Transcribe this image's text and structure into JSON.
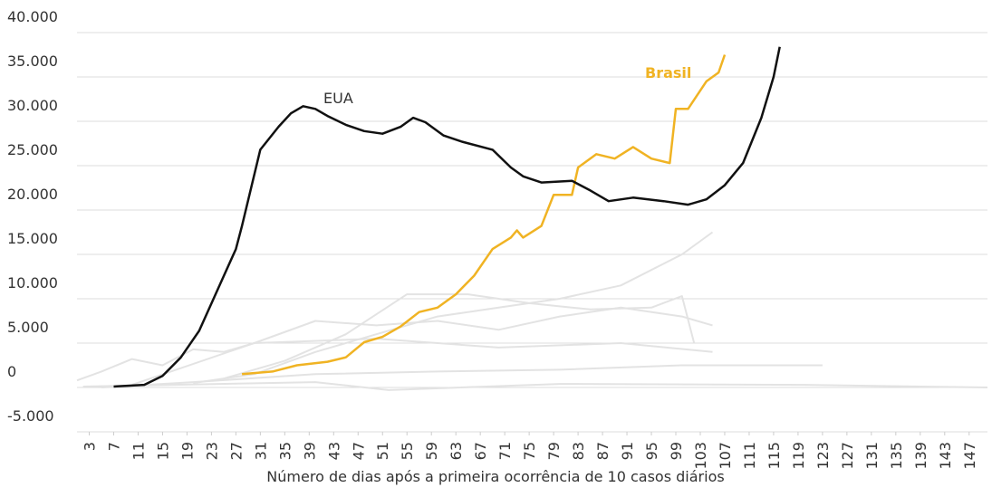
{
  "chart_data": {
    "type": "line",
    "x_label": "Número de dias após a primeira ocorrência de 10 casos diários",
    "xlim": [
      1,
      150
    ],
    "ylim": [
      -5000,
      40000
    ],
    "grid": true,
    "xticks": [
      3,
      7,
      11,
      15,
      19,
      23,
      27,
      31,
      35,
      39,
      43,
      47,
      51,
      55,
      59,
      63,
      67,
      71,
      75,
      79,
      83,
      87,
      91,
      95,
      99,
      103,
      107,
      111,
      115,
      119,
      123,
      127,
      131,
      135,
      139,
      143,
      147
    ],
    "yticks": [
      {
        "value": -5000,
        "label": "-5.000"
      },
      0,
      {
        "value": 5000,
        "label": "5.000"
      },
      {
        "value": 10000,
        "label": "10.000"
      },
      {
        "value": 15000,
        "label": "15.000"
      },
      {
        "value": 20000,
        "label": "20.000"
      },
      {
        "value": 25000,
        "label": "25.000"
      },
      {
        "value": 30000,
        "label": "30.000"
      },
      {
        "value": 35000,
        "label": "35.000"
      },
      {
        "value": 40000,
        "label": "40.000"
      }
    ],
    "series": [
      {
        "color": "#e3e3e3",
        "x": [
          1,
          5,
          10,
          15,
          20,
          25,
          30,
          40,
          50,
          60,
          70,
          80,
          90,
          100,
          105
        ],
        "values": [
          800,
          1800,
          3200,
          2500,
          4300,
          4000,
          5000,
          7500,
          7000,
          7500,
          6500,
          8000,
          9000,
          8000,
          7000
        ]
      },
      {
        "color": "#e3e3e3",
        "x": [
          20,
          30,
          40,
          50,
          60,
          70,
          80,
          90,
          100,
          105
        ],
        "values": [
          500,
          1500,
          4000,
          6000,
          8000,
          9000,
          10000,
          11500,
          15000,
          17500
        ]
      },
      {
        "color": "#e3e3e3",
        "x": [
          25,
          35,
          45,
          55,
          65,
          75,
          85,
          95,
          100,
          102
        ],
        "values": [
          1000,
          3000,
          6000,
          10500,
          10500,
          9500,
          8800,
          9000,
          10300,
          5000
        ]
      },
      {
        "color": "#e3e3e3",
        "x": [
          5,
          20,
          40,
          60,
          80,
          100,
          123
        ],
        "values": [
          0,
          600,
          1500,
          1800,
          2000,
          2500,
          2500
        ]
      },
      {
        "color": "#e3e3e3",
        "x": [
          10,
          30,
          50,
          70,
          90,
          105
        ],
        "values": [
          300,
          5000,
          5500,
          4500,
          5000,
          4000
        ]
      },
      {
        "color": "#e3e3e3",
        "x": [
          2,
          40,
          52,
          80,
          120,
          150
        ],
        "values": [
          100,
          600,
          -300,
          400,
          300,
          0
        ]
      },
      {
        "name": "Brasil",
        "color": "#f0b323",
        "x": [
          28,
          33,
          37,
          42,
          45,
          48,
          51,
          54,
          57,
          60,
          63,
          66,
          69,
          72,
          73,
          74,
          77,
          79,
          82,
          83,
          86,
          89,
          92,
          95,
          98,
          99,
          101,
          104,
          106,
          107
        ],
        "values": [
          1500,
          1800,
          2500,
          2900,
          3400,
          5100,
          5700,
          6900,
          8500,
          9000,
          10500,
          12600,
          15600,
          16900,
          17700,
          16900,
          18200,
          21700,
          21700,
          24800,
          26300,
          25800,
          27100,
          25800,
          25300,
          31400,
          31400,
          34500,
          35500,
          37500
        ]
      },
      {
        "name": "EUA",
        "color": "#111111",
        "x": [
          7,
          12,
          15,
          18,
          21,
          24,
          27,
          28,
          31,
          34,
          36,
          38,
          40,
          42,
          45,
          48,
          51,
          54,
          56,
          58,
          61,
          64,
          69,
          72,
          74,
          77,
          82,
          85,
          88,
          92,
          97,
          101,
          104,
          107,
          110,
          113,
          115,
          116
        ],
        "values": [
          100,
          300,
          1300,
          3400,
          6400,
          11000,
          15600,
          18200,
          26800,
          29400,
          30900,
          31700,
          31400,
          30600,
          29600,
          28900,
          28600,
          29400,
          30400,
          29900,
          28400,
          27700,
          26800,
          24800,
          23800,
          23100,
          23300,
          22200,
          21000,
          21400,
          21000,
          20600,
          21200,
          22800,
          25300,
          30400,
          35000,
          38400
        ]
      }
    ]
  }
}
